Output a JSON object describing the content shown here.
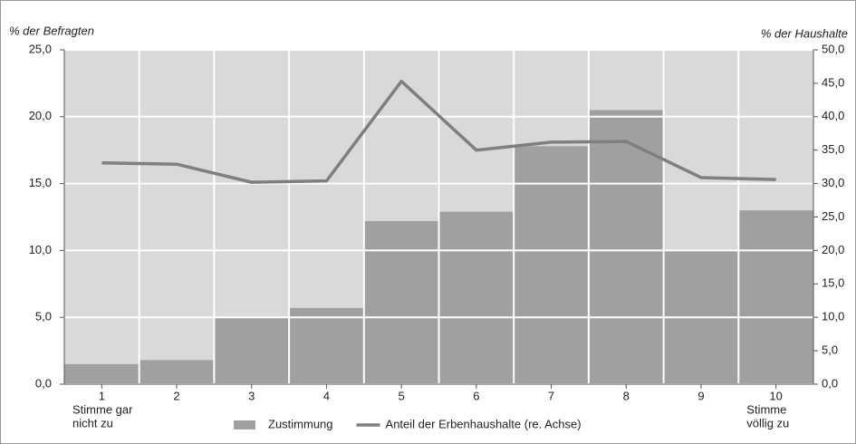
{
  "chart_data": {
    "type": "bar",
    "y_axis_label": "% der Befragten",
    "y2_axis_label": "% der Haushalte",
    "categories": [
      "1",
      "2",
      "3",
      "4",
      "5",
      "6",
      "7",
      "8",
      "9",
      "10"
    ],
    "x_end_labels": {
      "left": [
        "Stimme gar",
        "nicht zu"
      ],
      "right": [
        "Stimme",
        "völlig zu"
      ]
    },
    "series": [
      {
        "name": "Zustimmung",
        "type": "bar",
        "color": "#a0a0a2",
        "values": [
          1.5,
          1.8,
          5.0,
          5.7,
          12.2,
          12.9,
          17.8,
          20.5,
          10.0,
          13.0
        ]
      },
      {
        "name": "Anteil der Erbenhaushalte (re. Achse)",
        "type": "line",
        "axis": "y2",
        "color": "#7f7f7f",
        "values": [
          33.1,
          32.9,
          30.2,
          30.4,
          45.3,
          35.0,
          36.2,
          36.3,
          30.9,
          30.6
        ]
      }
    ],
    "ylim": [
      0,
      25
    ],
    "yticks": [
      {
        "value": 0,
        "label": "0,0"
      },
      {
        "value": 5,
        "label": "5,0"
      },
      {
        "value": 10,
        "label": "10,0"
      },
      {
        "value": 15,
        "label": "15,0"
      },
      {
        "value": 20,
        "label": "20,0"
      },
      {
        "value": 25,
        "label": "25,0"
      }
    ],
    "y2lim": [
      0,
      50
    ],
    "y2ticks": [
      {
        "value": 0,
        "label": "0,0"
      },
      {
        "value": 5,
        "label": "5,0"
      },
      {
        "value": 10,
        "label": "10,0"
      },
      {
        "value": 15,
        "label": "15,0"
      },
      {
        "value": 20,
        "label": "20,0"
      },
      {
        "value": 25,
        "label": "25,0"
      },
      {
        "value": 30,
        "label": "30,0"
      },
      {
        "value": 35,
        "label": "35,0"
      },
      {
        "value": 40,
        "label": "40,0"
      },
      {
        "value": 45,
        "label": "45,0"
      },
      {
        "value": 50,
        "label": "50,0"
      }
    ],
    "grid": true,
    "legend": "bottom"
  }
}
